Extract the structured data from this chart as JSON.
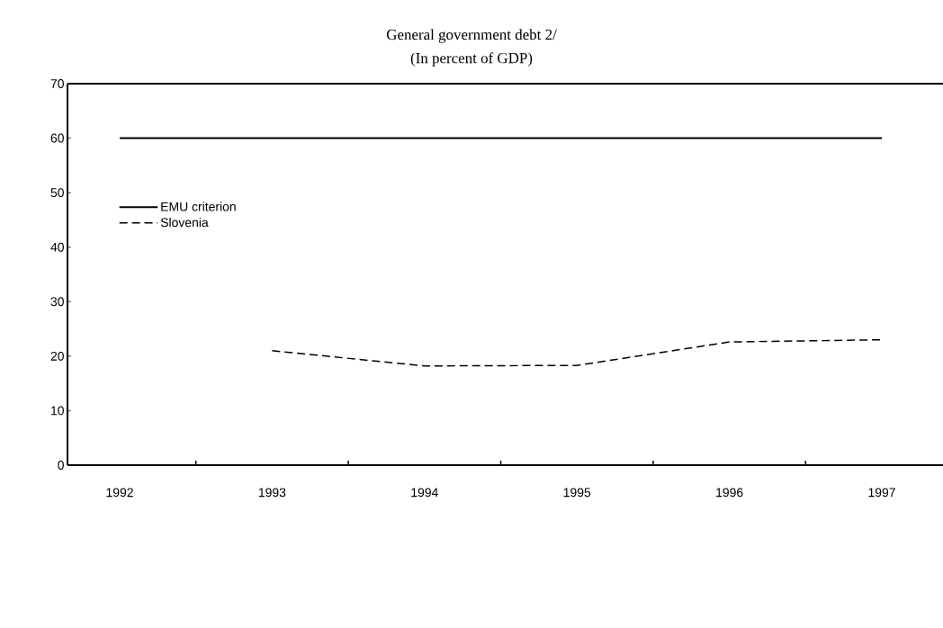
{
  "chart_data": {
    "type": "line",
    "title": "General government debt 2/",
    "subtitle": "(In percent of GDP)",
    "categories": [
      "1992",
      "1993",
      "1994",
      "1995",
      "1996",
      "1997"
    ],
    "series": [
      {
        "name": "EMU criterion",
        "color": "#000000",
        "line_style": "solid",
        "values": [
          60,
          60,
          60,
          60,
          60,
          60
        ]
      },
      {
        "name": "Slovenia",
        "color": "#000000",
        "line_style": "dashed",
        "values": [
          null,
          21.0,
          18.2,
          18.3,
          22.6,
          23.0
        ]
      }
    ],
    "ylim": [
      0,
      70
    ],
    "yticks": [
      0,
      10,
      20,
      30,
      40,
      50,
      60,
      70
    ],
    "grid": false,
    "legend": "left",
    "marker": "none"
  }
}
